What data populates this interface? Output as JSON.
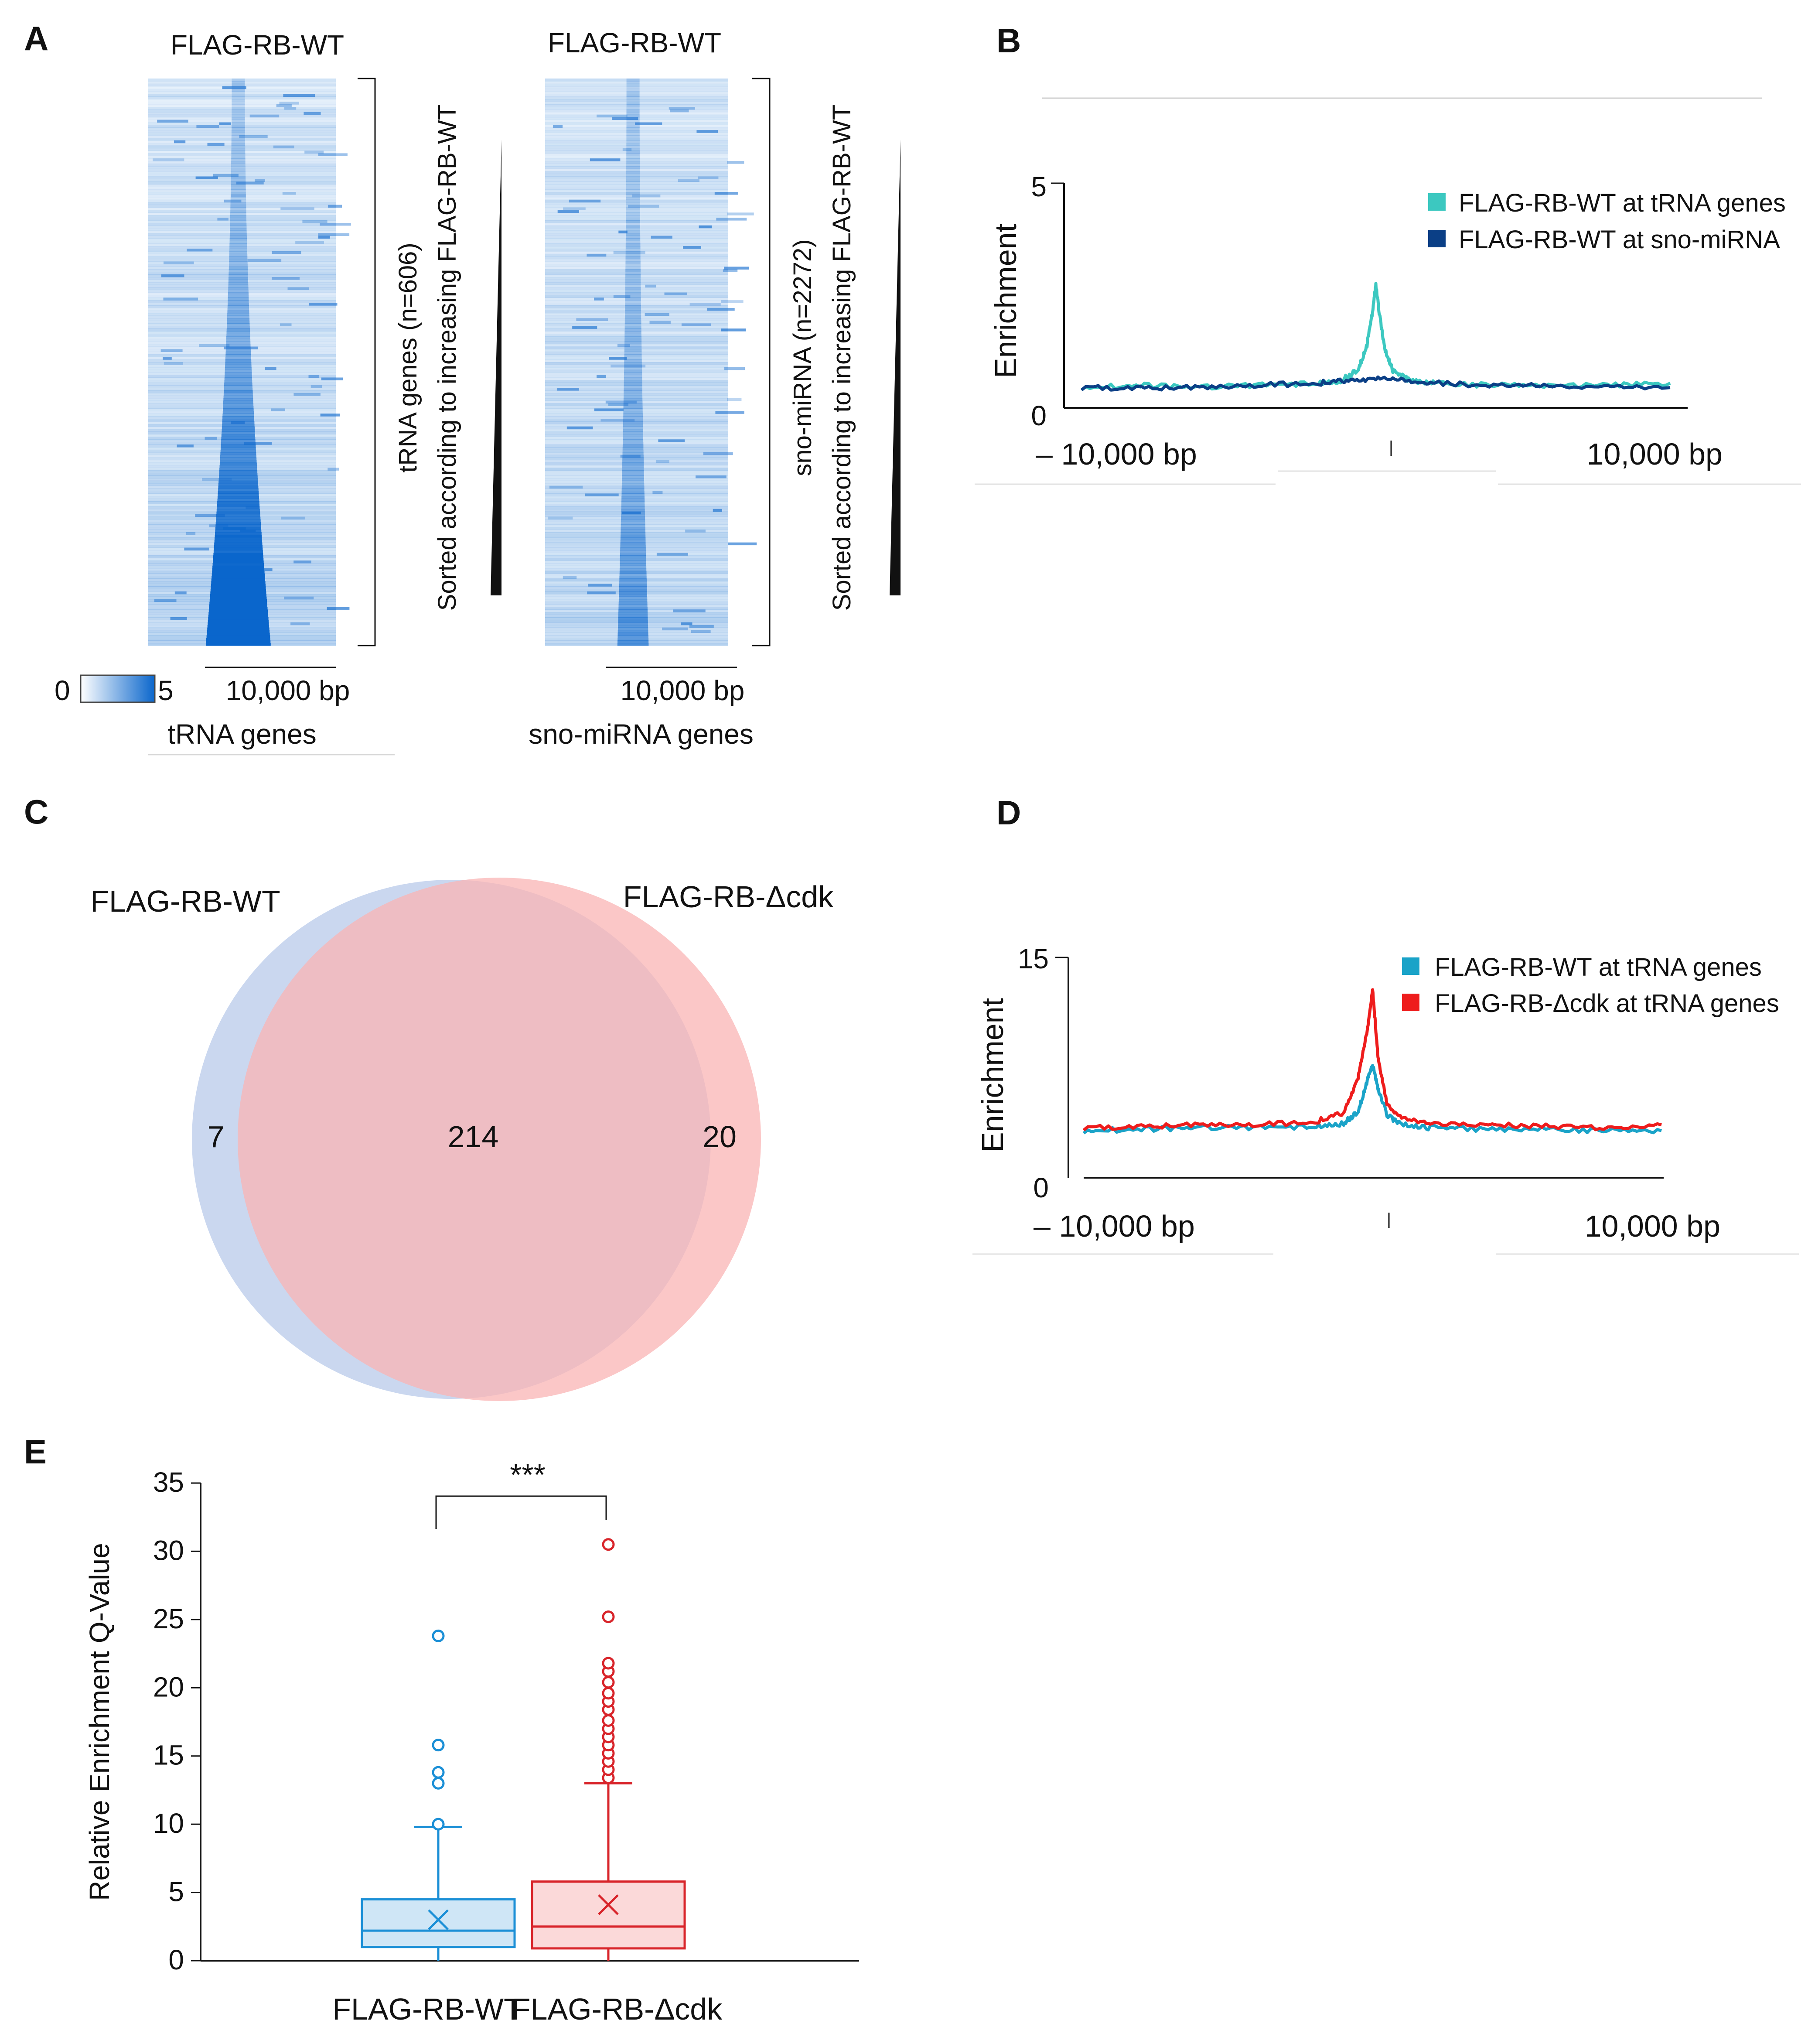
{
  "panels": {
    "A": {
      "letter": "A",
      "heatmap_left": {
        "title": "FLAG-RB-WT",
        "rotated_label": "tRNA genes (n=606)",
        "sort_label": "Sorted according to increasing FLAG-RB-WT",
        "scale_label": "10,000 bp",
        "caption": "tRNA genes"
      },
      "heatmap_right": {
        "title": "FLAG-RB-WT",
        "rotated_label": "sno-miRNA (n=2272)",
        "sort_label": "Sorted according to increasing FLAG-RB-WT",
        "scale_label": "10,000 bp",
        "caption": "sno-miRNA genes"
      },
      "colorbar": {
        "min": "0",
        "max": "5",
        "color_low": "#ffffff",
        "color_high": "#0a66cc"
      }
    },
    "B": {
      "letter": "B",
      "ylabel": "Enrichment",
      "ytick_max": "5",
      "ytick_min": "0",
      "xleft": "– 10,000 bp",
      "xright": "10,000 bp",
      "legend": [
        {
          "label": "FLAG-RB-WT at tRNA genes",
          "color": "#3cc8c0"
        },
        {
          "label": "FLAG-RB-WT at sno-miRNA",
          "color": "#0b3f86"
        }
      ]
    },
    "C": {
      "letter": "C",
      "left_label": "FLAG-RB-WT",
      "right_label": "FLAG-RB-Δcdk",
      "left_only": "7",
      "overlap": "214",
      "right_only": "20",
      "left_color": "#c7d5ee",
      "right_color": "#f9b4b4"
    },
    "D": {
      "letter": "D",
      "ylabel": "Enrichment",
      "ytick_max": "15",
      "ytick_min": "0",
      "xleft": "– 10,000 bp",
      "xright": "10,000 bp",
      "legend": [
        {
          "label": "FLAG-RB-WT at tRNA genes",
          "color": "#1aa3c8"
        },
        {
          "label": "FLAG-RB-Δcdk at tRNA genes",
          "color": "#ee1c1c"
        }
      ]
    },
    "E": {
      "letter": "E",
      "significance": "***"
    }
  },
  "chart_data": [
    {
      "id": "B",
      "type": "line",
      "title": "",
      "xlabel": "",
      "ylabel": "Enrichment",
      "xlim": [
        -10000,
        10000
      ],
      "ylim": [
        0,
        5
      ],
      "series": [
        {
          "name": "FLAG-RB-WT at tRNA genes",
          "color": "#3cc8c0",
          "x": [
            -10000,
            -8000,
            -6000,
            -4000,
            -2000,
            -1200,
            -600,
            -300,
            -100,
            0,
            100,
            300,
            600,
            1200,
            2000,
            4000,
            6000,
            8000,
            10000
          ],
          "y": [
            0.45,
            0.5,
            0.45,
            0.5,
            0.55,
            0.6,
            0.85,
            1.4,
            2.2,
            2.75,
            2.2,
            1.3,
            0.8,
            0.6,
            0.55,
            0.5,
            0.5,
            0.5,
            0.55
          ]
        },
        {
          "name": "FLAG-RB-WT at sno-miRNA",
          "color": "#0b3f86",
          "x": [
            -10000,
            -8000,
            -6000,
            -4000,
            -2000,
            -1000,
            0,
            1000,
            2000,
            4000,
            6000,
            8000,
            10000
          ],
          "y": [
            0.45,
            0.45,
            0.45,
            0.5,
            0.55,
            0.6,
            0.65,
            0.6,
            0.55,
            0.5,
            0.48,
            0.45,
            0.45
          ]
        }
      ]
    },
    {
      "id": "D",
      "type": "line",
      "title": "",
      "xlabel": "",
      "ylabel": "Enrichment",
      "xlim": [
        -10000,
        10000
      ],
      "ylim": [
        0,
        15
      ],
      "series": [
        {
          "name": "FLAG-RB-WT at tRNA genes",
          "color": "#1aa3c8",
          "x": [
            -10000,
            -8000,
            -6000,
            -4000,
            -2000,
            -1000,
            -500,
            -200,
            0,
            200,
            500,
            1000,
            2000,
            4000,
            6000,
            8000,
            10000
          ],
          "y": [
            3.2,
            3.3,
            3.4,
            3.4,
            3.5,
            3.7,
            4.5,
            6.5,
            7.7,
            6.0,
            4.3,
            3.6,
            3.4,
            3.3,
            3.3,
            3.2,
            3.2
          ]
        },
        {
          "name": "FLAG-RB-Δcdk at tRNA genes",
          "color": "#ee1c1c",
          "x": [
            -10000,
            -8000,
            -6000,
            -4000,
            -2000,
            -1000,
            -500,
            -200,
            0,
            200,
            500,
            1000,
            2000,
            4000,
            6000,
            8000,
            10000
          ],
          "y": [
            3.4,
            3.5,
            3.6,
            3.6,
            3.8,
            4.4,
            6.8,
            9.8,
            12.8,
            8.0,
            5.0,
            4.0,
            3.7,
            3.6,
            3.5,
            3.4,
            3.6
          ]
        }
      ]
    },
    {
      "id": "E",
      "type": "box",
      "ylabel": "Relative Enrichment Q-Value",
      "ylim": [
        0,
        35
      ],
      "yticks": [
        "0",
        "5",
        "10",
        "15",
        "20",
        "25",
        "30",
        "35"
      ],
      "categories": [
        "FLAG-RB-WT",
        "FLAG-RB-Δcdk"
      ],
      "boxes": [
        {
          "name": "FLAG-RB-WT",
          "color": "#1b8fd6",
          "fill": "#cfe6f6",
          "whisker_low": 0,
          "q1": 1.0,
          "median": 2.2,
          "q3": 4.5,
          "whisker_high": 9.8,
          "mean": 3.0,
          "outliers": [
            10.0,
            13.0,
            13.8,
            15.8,
            23.8
          ]
        },
        {
          "name": "FLAG-RB-Δcdk",
          "color": "#d8242a",
          "fill": "#fbd9d9",
          "whisker_low": 0,
          "q1": 0.9,
          "median": 2.5,
          "q3": 5.8,
          "whisker_high": 13.0,
          "mean": 4.1,
          "outliers": [
            13.4,
            14.0,
            14.6,
            15.2,
            15.8,
            16.4,
            17.0,
            17.6,
            18.4,
            19.0,
            19.6,
            20.4,
            21.2,
            21.8,
            25.2,
            30.5
          ]
        }
      ]
    }
  ]
}
